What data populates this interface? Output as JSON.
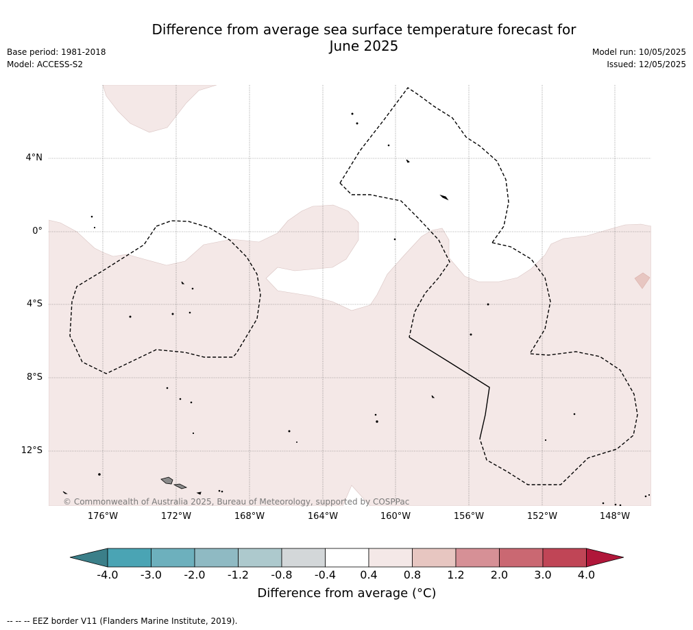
{
  "header": {
    "title_line1": "Difference from average sea surface temperature forecast for",
    "title_line2": "June 2025",
    "base_period": "Base period: 1981-2018",
    "model": "Model: ACCESS-S2",
    "model_run": "Model run: 10/05/2025",
    "issued": "Issued: 12/05/2025"
  },
  "map": {
    "lat_labels": [
      "4°N",
      "0°",
      "4°S",
      "8°S",
      "12°S"
    ],
    "lon_labels": [
      "176°W",
      "172°W",
      "168°W",
      "164°W",
      "160°W",
      "156°W",
      "152°W",
      "148°W"
    ],
    "copyright": "© Commonwealth of Australia 2025, Bureau of Meteorology, supported by COSPPac",
    "anomaly_fill_color": "#f4e8e7",
    "warm_patch_color": "#e7c6c1"
  },
  "colorbar": {
    "colors": [
      "#3b7f89",
      "#4aa4b4",
      "#6db0bd",
      "#8fbac3",
      "#adc9cd",
      "#d3d7d9",
      "#ffffff",
      "#f4e8e7",
      "#e7c6c1",
      "#d69096",
      "#ca6872",
      "#c04556",
      "#b0173a"
    ],
    "tick_labels": [
      "-4.0",
      "-3.0",
      "-2.0",
      "-1.2",
      "-0.8",
      "-0.4",
      "0.4",
      "0.8",
      "1.2",
      "2.0",
      "3.0",
      "4.0"
    ],
    "title": "Difference from average (",
    "unit": "°C)"
  },
  "footnote": "--  --  -- EEZ border V11 (Flanders Marine Institute, 2019)."
}
